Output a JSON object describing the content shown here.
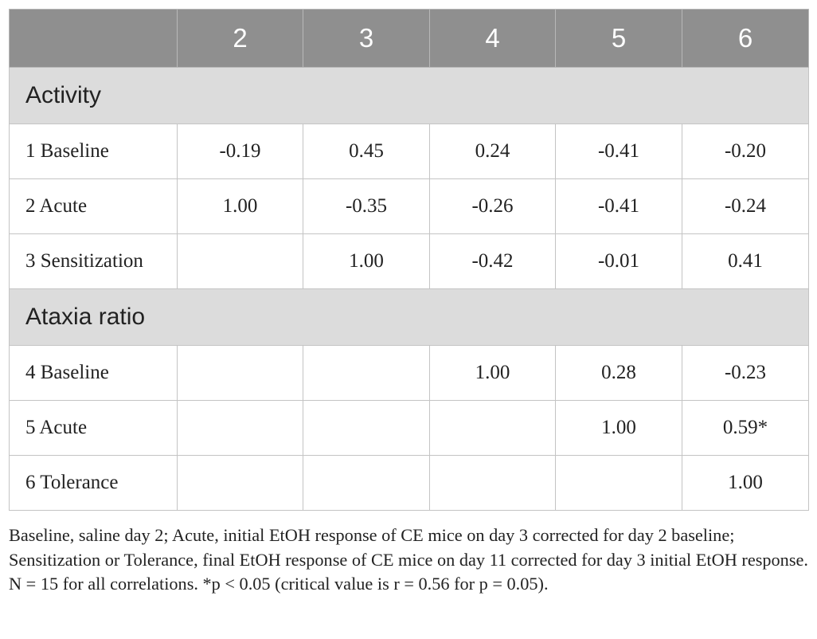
{
  "table": {
    "columns": [
      "",
      "2",
      "3",
      "4",
      "5",
      "6"
    ],
    "sections": [
      {
        "title": "Activity",
        "rows": [
          {
            "label": "1 Baseline",
            "values": [
              "-0.19",
              "0.45",
              "0.24",
              "-0.41",
              "-0.20"
            ]
          },
          {
            "label": "2 Acute",
            "values": [
              "1.00",
              "-0.35",
              "-0.26",
              "-0.41",
              "-0.24"
            ]
          },
          {
            "label": "3 Sensitization",
            "values": [
              "",
              "1.00",
              "-0.42",
              "-0.01",
              "0.41"
            ]
          }
        ]
      },
      {
        "title": "Ataxia ratio",
        "rows": [
          {
            "label": "4 Baseline",
            "values": [
              "",
              "",
              "1.00",
              "0.28",
              "-0.23"
            ]
          },
          {
            "label": "5 Acute",
            "values": [
              "",
              "",
              "",
              "1.00",
              "0.59*"
            ]
          },
          {
            "label": "6 Tolerance",
            "values": [
              "",
              "",
              "",
              "",
              "1.00"
            ]
          }
        ]
      }
    ]
  },
  "footnotes": [
    "Baseline, saline day 2; Acute, initial EtOH response of CE mice on day 3 corrected for day 2 baseline; Sensitization or Tolerance, final EtOH response of CE mice on day 11 corrected for day 3 initial EtOH response.",
    "N = 15 for all correlations. *p < 0.05 (critical value is r = 0.56 for p = 0.05)."
  ]
}
